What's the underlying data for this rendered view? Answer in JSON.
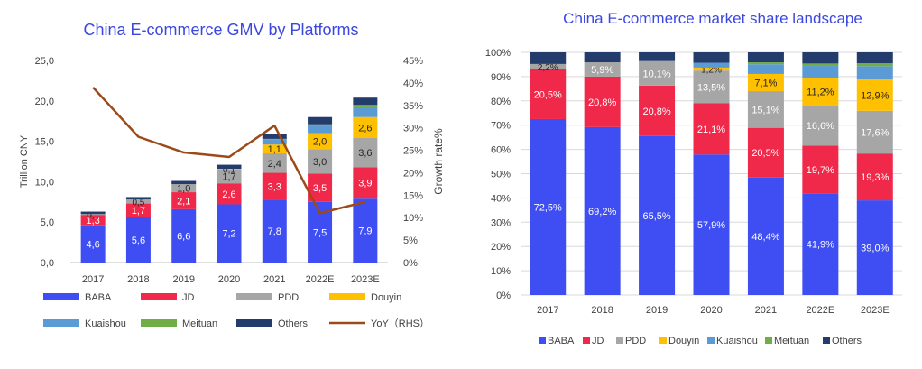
{
  "colors": {
    "BABA": "#3F4EF2",
    "JD": "#F0284A",
    "PDD": "#A6A6A6",
    "Douyin": "#FFC000",
    "Kuaishou": "#5B9BD5",
    "Meituan": "#70AD47",
    "Others": "#233C6B",
    "YoY": "#9C4A1A",
    "title": "#3B47E0",
    "axis_text": "#404040",
    "grid": "#D9D9D9"
  },
  "chart_data": [
    {
      "type": "bar",
      "stacked": true,
      "title": "China E-commerce GMV by Platforms",
      "ylabel": "Trillion CNY",
      "y2label": "Growth rate%",
      "ylim": [
        0,
        25
      ],
      "y_ticks": [
        "0,0",
        "5,0",
        "10,0",
        "15,0",
        "20,0",
        "25,0"
      ],
      "y2lim": [
        0,
        45
      ],
      "y2_ticks": [
        "0%",
        "5%",
        "10%",
        "15%",
        "20%",
        "25%",
        "30%",
        "35%",
        "40%",
        "45%"
      ],
      "categories": [
        "2017",
        "2018",
        "2019",
        "2020",
        "2021",
        "2022E",
        "2023E"
      ],
      "series": [
        {
          "name": "BABA",
          "values": [
            4.6,
            5.6,
            6.6,
            7.2,
            7.8,
            7.5,
            7.9
          ],
          "labels": [
            "4,6",
            "5,6",
            "6,6",
            "7,2",
            "7,8",
            "7,5",
            "7,9"
          ]
        },
        {
          "name": "JD",
          "values": [
            1.3,
            1.7,
            2.1,
            2.6,
            3.3,
            3.5,
            3.9
          ],
          "labels": [
            "1,3",
            "1,7",
            "2,1",
            "2,6",
            "3,3",
            "3,5",
            "3,9"
          ]
        },
        {
          "name": "PDD",
          "values": [
            0.1,
            0.5,
            1.0,
            1.7,
            2.4,
            3.0,
            3.6
          ],
          "labels": [
            "0,1",
            "0,5",
            "1,0",
            "1,7",
            "2,4",
            "3,0",
            "3,6"
          ]
        },
        {
          "name": "Douyin",
          "values": [
            0,
            0,
            0,
            0.1,
            1.1,
            2.0,
            2.6
          ],
          "labels": [
            "",
            "",
            "",
            "0,1",
            "1,1",
            "2,0",
            "2,6"
          ]
        },
        {
          "name": "Kuaishou",
          "values": [
            0,
            0,
            0,
            0,
            0.6,
            0.9,
            1.2
          ],
          "labels": [
            "",
            "",
            "",
            "",
            "",
            "",
            ""
          ]
        },
        {
          "name": "Meituan",
          "values": [
            0,
            0,
            0,
            0,
            0.1,
            0.2,
            0.3
          ],
          "labels": [
            "",
            "",
            "",
            "",
            "",
            "",
            ""
          ]
        },
        {
          "name": "Others",
          "values": [
            0.3,
            0.3,
            0.4,
            0.5,
            0.6,
            0.9,
            0.9
          ],
          "labels": [
            "",
            "",
            "",
            "",
            "",
            "",
            ""
          ]
        }
      ],
      "line_series": {
        "name": "YoY（RHS）",
        "axis": "right",
        "values": [
          39,
          28,
          24.5,
          23.5,
          30.5,
          11,
          13.5
        ]
      },
      "legend": [
        {
          "name": "BABA",
          "kind": "bar"
        },
        {
          "name": "JD",
          "kind": "bar"
        },
        {
          "name": "PDD",
          "kind": "bar"
        },
        {
          "name": "Douyin",
          "kind": "bar"
        },
        {
          "name": "Kuaishou",
          "kind": "bar"
        },
        {
          "name": "Meituan",
          "kind": "bar"
        },
        {
          "name": "Others",
          "kind": "bar"
        },
        {
          "name": "YoY（RHS）",
          "kind": "line"
        }
      ],
      "legend_position": "bottom",
      "grid": false
    },
    {
      "type": "bar",
      "stacked": true,
      "percent": true,
      "title": "China E-commerce market share landscape",
      "ylim": [
        0,
        100
      ],
      "y_ticks": [
        "0%",
        "10%",
        "20%",
        "30%",
        "40%",
        "50%",
        "60%",
        "70%",
        "80%",
        "90%",
        "100%"
      ],
      "categories": [
        "2017",
        "2018",
        "2019",
        "2020",
        "2021",
        "2022E",
        "2023E"
      ],
      "series": [
        {
          "name": "BABA",
          "values": [
            72.5,
            69.2,
            65.5,
            57.9,
            48.4,
            41.9,
            39.0
          ],
          "labels": [
            "72,5%",
            "69,2%",
            "65,5%",
            "57,9%",
            "48,4%",
            "41,9%",
            "39,0%"
          ]
        },
        {
          "name": "JD",
          "values": [
            20.5,
            20.8,
            20.8,
            21.1,
            20.5,
            19.7,
            19.3
          ],
          "labels": [
            "20,5%",
            "20,8%",
            "20,8%",
            "21,1%",
            "20,5%",
            "19,7%",
            "19,3%"
          ]
        },
        {
          "name": "PDD",
          "values": [
            2.2,
            5.9,
            10.1,
            13.5,
            15.1,
            16.6,
            17.6
          ],
          "labels": [
            "2,2%",
            "5,9%",
            "10,1%",
            "13,5%",
            "15,1%",
            "16,6%",
            "17,6%"
          ]
        },
        {
          "name": "Douyin",
          "values": [
            0,
            0,
            0,
            1.2,
            7.1,
            11.2,
            12.9
          ],
          "labels": [
            "",
            "",
            "",
            "1,2%",
            "7,1%",
            "11,2%",
            "12,9%"
          ]
        },
        {
          "name": "Kuaishou",
          "values": [
            0,
            0,
            0,
            2.0,
            4.0,
            5.0,
            5.5
          ],
          "labels": [
            "",
            "",
            "",
            "",
            "",
            "",
            ""
          ]
        },
        {
          "name": "Meituan",
          "values": [
            0,
            0,
            0,
            0,
            0.8,
            1.0,
            1.2
          ],
          "labels": [
            "",
            "",
            "",
            "",
            "",
            "",
            ""
          ]
        },
        {
          "name": "Others",
          "values": [
            4.8,
            4.1,
            3.6,
            4.3,
            4.1,
            4.6,
            4.5
          ],
          "labels": [
            "",
            "",
            "",
            "",
            "",
            "",
            ""
          ]
        }
      ],
      "legend": [
        "BABA",
        "JD",
        "PDD",
        "Douyin",
        "Kuaishou",
        "Meituan",
        "Others"
      ],
      "legend_position": "bottom",
      "grid": true
    }
  ]
}
